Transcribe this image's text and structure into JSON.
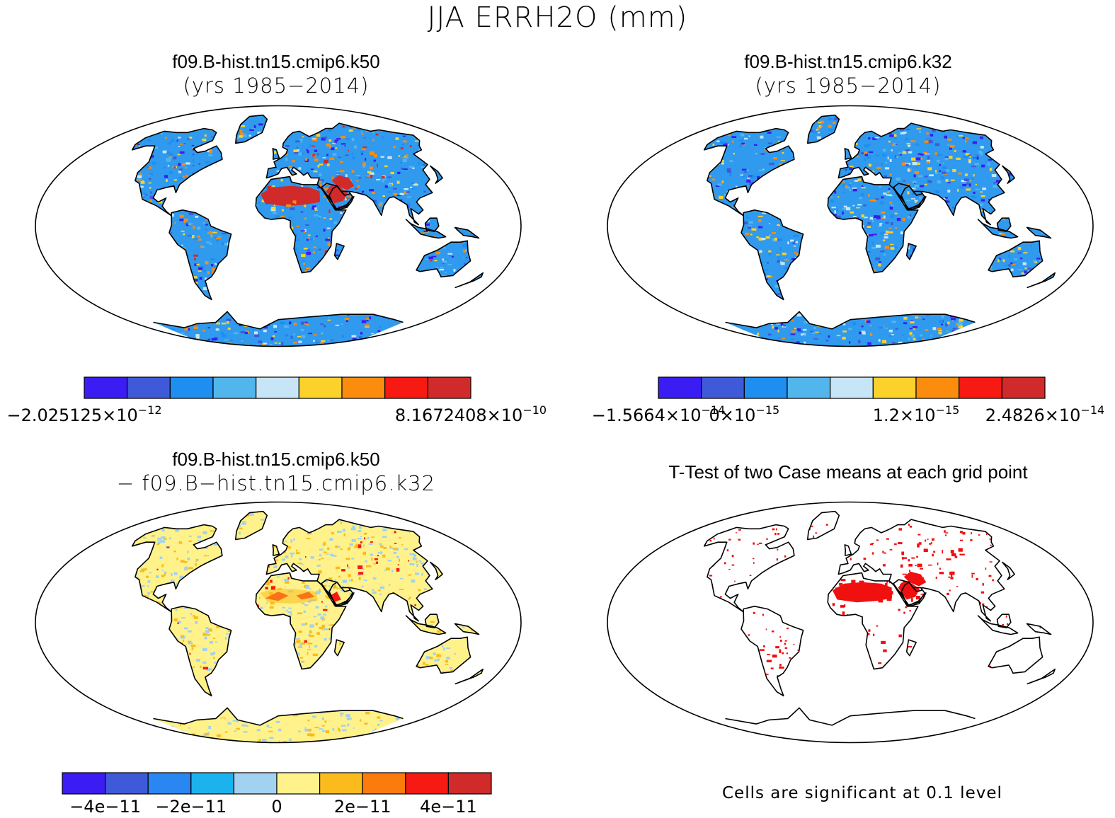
{
  "figure": {
    "title": "JJA ERRH2O (mm)"
  },
  "panels": [
    {
      "id": "k50",
      "title_line1": "f09.B-hist.tn15.cmip6.k50",
      "title_line2": "(yrs 1985−2014)",
      "field": "case-mean",
      "colorbar": {
        "colors": [
          "#3b1cf2",
          "#3f5ad8",
          "#1e8ef0",
          "#52b6ec",
          "#c6e6f8",
          "#fcd12a",
          "#fb8c0e",
          "#f61a12",
          "#d12a2a"
        ],
        "labels": [
          {
            "mantissa": "−2.025125×10",
            "exponent": "−12",
            "at": 0
          },
          {
            "mantissa": "8.1672408×10",
            "exponent": "−10",
            "at": 9
          }
        ]
      }
    },
    {
      "id": "k32",
      "title_line1": "f09.B-hist.tn15.cmip6.k32",
      "title_line2": "(yrs 1985−2014)",
      "field": "case-mean",
      "colorbar": {
        "colors": [
          "#3b1cf2",
          "#3f5ad8",
          "#1e8ef0",
          "#52b6ec",
          "#c6e6f8",
          "#fcd12a",
          "#fb8c0e",
          "#f61a12",
          "#d12a2a"
        ],
        "labels": [
          {
            "mantissa": "−1.5664×10",
            "exponent": "−14",
            "at": 0
          },
          {
            "mantissa": "0×10",
            "exponent": "−15",
            "at": 2
          },
          {
            "mantissa": "1.2×10",
            "exponent": "−15",
            "at": 6
          },
          {
            "mantissa": "2.4826×10",
            "exponent": "−14",
            "at": 9
          }
        ]
      }
    },
    {
      "id": "diff",
      "title_line1": "f09.B-hist.tn15.cmip6.k50",
      "title_line2": "− f09.B−hist.tn15.cmip6.k32",
      "field": "difference",
      "colorbar": {
        "colors": [
          "#3b1cf2",
          "#3f5ad8",
          "#2a86f0",
          "#1cb2ee",
          "#a2d2f0",
          "#fff28a",
          "#fbbb1c",
          "#fb7c0c",
          "#f61a12",
          "#d12a2a"
        ],
        "labels": [
          {
            "mantissa": "−4e−11",
            "exponent": "",
            "at": 1
          },
          {
            "mantissa": "−2e−11",
            "exponent": "",
            "at": 3
          },
          {
            "mantissa": "0",
            "exponent": "",
            "at": 5
          },
          {
            "mantissa": "2e−11",
            "exponent": "",
            "at": 7
          },
          {
            "mantissa": "4e−11",
            "exponent": "",
            "at": 9
          }
        ]
      }
    },
    {
      "id": "ttest",
      "title_line1": "T-Test of two Case means at each grid point",
      "title_line2": "",
      "field": "significance",
      "note": "Cells are significant at 0.1 level"
    }
  ],
  "colors": {
    "coastline": "#000000",
    "significant": "#f01010"
  }
}
